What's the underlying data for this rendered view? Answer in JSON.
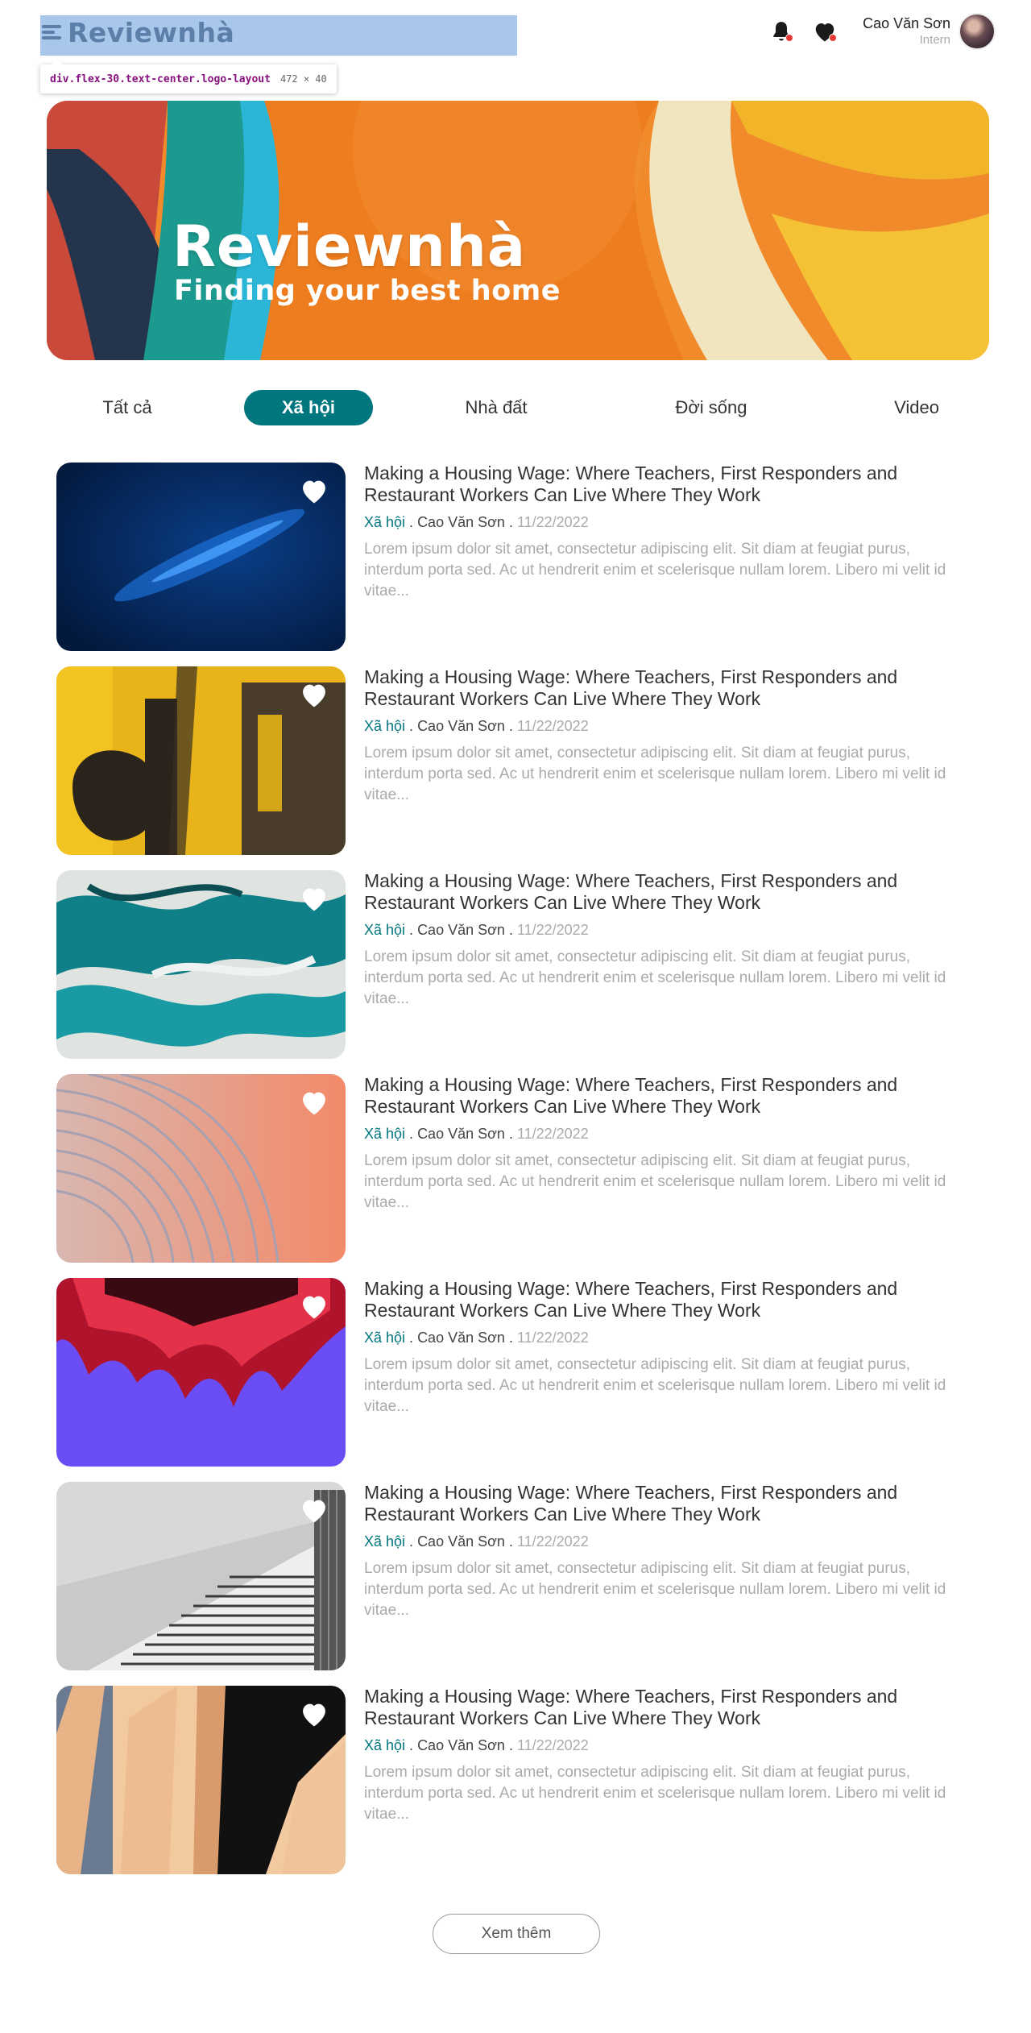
{
  "header": {
    "logo_text": "Reviewnhà",
    "inspector_tooltip": {
      "selector": "div.flex-30.text-center.logo-layout",
      "size": "472 × 40"
    },
    "user": {
      "name": "Cao Văn Sơn",
      "role": "Intern"
    },
    "icons": [
      "bell-icon",
      "heart-icon"
    ]
  },
  "banner": {
    "title": "Reviewnhà",
    "subtitle": "Finding your best home"
  },
  "tabs": [
    {
      "label": "Tất cả",
      "active": false
    },
    {
      "label": "Xã hội",
      "active": true
    },
    {
      "label": "Nhà đất",
      "active": false
    },
    {
      "label": "Đời sống",
      "active": false
    },
    {
      "label": "Video",
      "active": false
    }
  ],
  "articles": [
    {
      "title": "Making a Housing Wage: Where Teachers, First Responders and Restaurant Workers Can Live Where They Work",
      "category": "Xã hội",
      "author": "Cao Văn Sơn",
      "date": "11/22/2022",
      "excerpt": "Lorem ipsum dolor sit amet, consectetur adipiscing elit. Sit diam at feugiat purus, interdum porta sed. Ac ut hendrerit enim et scelerisque nullam lorem. Libero mi velit id vitae..."
    },
    {
      "title": "Making a Housing Wage: Where Teachers, First Responders and Restaurant Workers Can Live Where They Work",
      "category": "Xã hội",
      "author": "Cao Văn Sơn",
      "date": "11/22/2022",
      "excerpt": "Lorem ipsum dolor sit amet, consectetur adipiscing elit. Sit diam at feugiat purus, interdum porta sed. Ac ut hendrerit enim et scelerisque nullam lorem. Libero mi velit id vitae..."
    },
    {
      "title": "Making a Housing Wage: Where Teachers, First Responders and Restaurant Workers Can Live Where They Work",
      "category": "Xã hội",
      "author": "Cao Văn Sơn",
      "date": "11/22/2022",
      "excerpt": "Lorem ipsum dolor sit amet, consectetur adipiscing elit. Sit diam at feugiat purus, interdum porta sed. Ac ut hendrerit enim et scelerisque nullam lorem. Libero mi velit id vitae..."
    },
    {
      "title": "Making a Housing Wage: Where Teachers, First Responders and Restaurant Workers Can Live Where They Work",
      "category": "Xã hội",
      "author": "Cao Văn Sơn",
      "date": "11/22/2022",
      "excerpt": "Lorem ipsum dolor sit amet, consectetur adipiscing elit. Sit diam at feugiat purus, interdum porta sed. Ac ut hendrerit enim et scelerisque nullam lorem. Libero mi velit id vitae..."
    },
    {
      "title": "Making a Housing Wage: Where Teachers, First Responders and Restaurant Workers Can Live Where They Work",
      "category": "Xã hội",
      "author": "Cao Văn Sơn",
      "date": "11/22/2022",
      "excerpt": "Lorem ipsum dolor sit amet, consectetur adipiscing elit. Sit diam at feugiat purus, interdum porta sed. Ac ut hendrerit enim et scelerisque nullam lorem. Libero mi velit id vitae..."
    },
    {
      "title": "Making a Housing Wage: Where Teachers, First Responders and Restaurant Workers Can Live Where They Work",
      "category": "Xã hội",
      "author": "Cao Văn Sơn",
      "date": "11/22/2022",
      "excerpt": "Lorem ipsum dolor sit amet, consectetur adipiscing elit. Sit diam at feugiat purus, interdum porta sed. Ac ut hendrerit enim et scelerisque nullam lorem. Libero mi velit id vitae..."
    },
    {
      "title": "Making a Housing Wage: Where Teachers, First Responders and Restaurant Workers Can Live Where They Work",
      "category": "Xã hội",
      "author": "Cao Văn Sơn",
      "date": "11/22/2022",
      "excerpt": "Lorem ipsum dolor sit amet, consectetur adipiscing elit. Sit diam at feugiat purus, interdum porta sed. Ac ut hendrerit enim et scelerisque nullam lorem. Libero mi velit id vitae..."
    }
  ],
  "load_more": {
    "label": "Xem thêm"
  },
  "colors": {
    "accent": "#00767e",
    "muted": "#aaaaaa",
    "notification": "#e53935"
  }
}
